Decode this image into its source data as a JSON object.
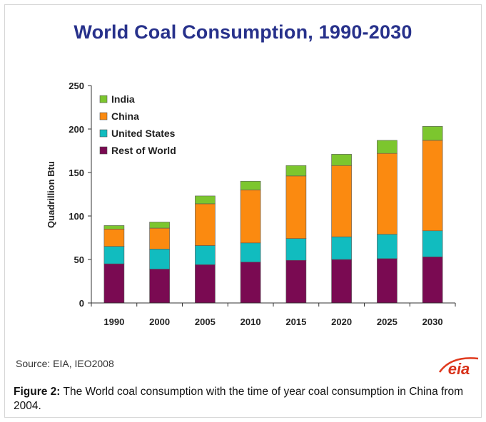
{
  "chart_data": {
    "type": "bar",
    "stacked": true,
    "title": "World Coal Consumption, 1990-2030",
    "ylabel": "Quadrillion Btu",
    "xlabel": "",
    "ylim": [
      0,
      250
    ],
    "yticks": [
      0,
      50,
      100,
      150,
      200,
      250
    ],
    "categories": [
      "1990",
      "2000",
      "2005",
      "2010",
      "2015",
      "2020",
      "2025",
      "2030"
    ],
    "series": [
      {
        "name": "Rest of World",
        "color": "#7a0a52",
        "values": [
          45,
          39,
          44,
          47,
          49,
          50,
          51,
          53
        ]
      },
      {
        "name": "United States",
        "color": "#11bcbf",
        "values": [
          20,
          23,
          22,
          22,
          25,
          26,
          28,
          30
        ]
      },
      {
        "name": "China",
        "color": "#fb8a10",
        "values": [
          20,
          24,
          48,
          61,
          72,
          82,
          93,
          104
        ]
      },
      {
        "name": "India",
        "color": "#7cc62e",
        "values": [
          4,
          7,
          9,
          10,
          12,
          13,
          15,
          16
        ]
      }
    ],
    "legend_order": [
      "India",
      "China",
      "United States",
      "Rest of World"
    ],
    "legend_position": "top-left",
    "grid": false
  },
  "source_text": "Source:  EIA, IEO2008",
  "logo_text": "eia",
  "caption": {
    "label": "Figure 2:",
    "text": " The World coal consumption with the time of year coal consumption in China from 2004."
  }
}
